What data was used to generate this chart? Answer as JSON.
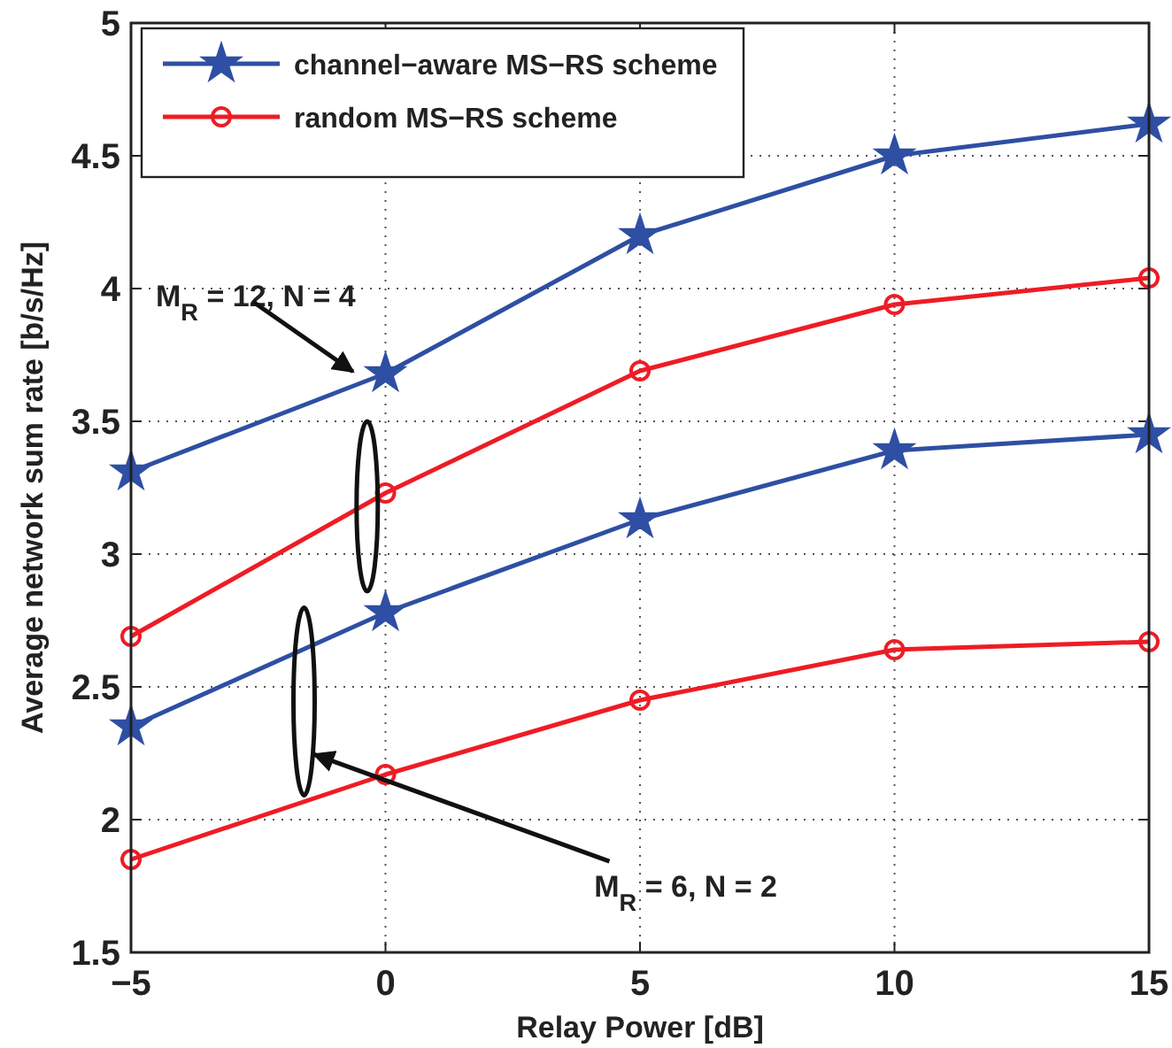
{
  "chart_data": {
    "type": "line",
    "xlabel": "Relay Power [dB]",
    "ylabel": "Average network sum rate [b/s/Hz]",
    "x": [
      -5,
      0,
      5,
      10,
      15
    ],
    "series": [
      {
        "name": "channel−aware MS−RS scheme",
        "color": "#2e4fa3",
        "values": [
          3.31,
          3.68,
          4.2,
          4.5,
          4.62
        ],
        "marker": "star"
      },
      {
        "name": "random MS−RS scheme",
        "color": "#ee1c25",
        "values": [
          2.69,
          3.23,
          3.69,
          3.94,
          4.04
        ],
        "marker": "circle"
      },
      {
        "color": "#2e4fa3",
        "values": [
          2.35,
          2.78,
          3.13,
          3.39,
          3.45
        ],
        "marker": "star"
      },
      {
        "color": "#ee1c25",
        "values": [
          1.85,
          2.17,
          2.45,
          2.64,
          2.67
        ],
        "marker": "circle"
      }
    ],
    "xlim": [
      -5,
      15
    ],
    "xticks": [
      {
        "value": -5,
        "label": "−5"
      },
      0,
      5,
      10,
      15
    ],
    "ylim": [
      1.5,
      5
    ],
    "yticks": [
      1.5,
      2,
      2.5,
      3,
      3.5,
      4,
      4.5,
      5
    ],
    "grid": true,
    "legend": "top left",
    "line_style": "solid",
    "annotations": [
      "M$_{R}$ = 12, N = 4",
      "M$_{R}$ = 6, N = 2"
    ]
  }
}
